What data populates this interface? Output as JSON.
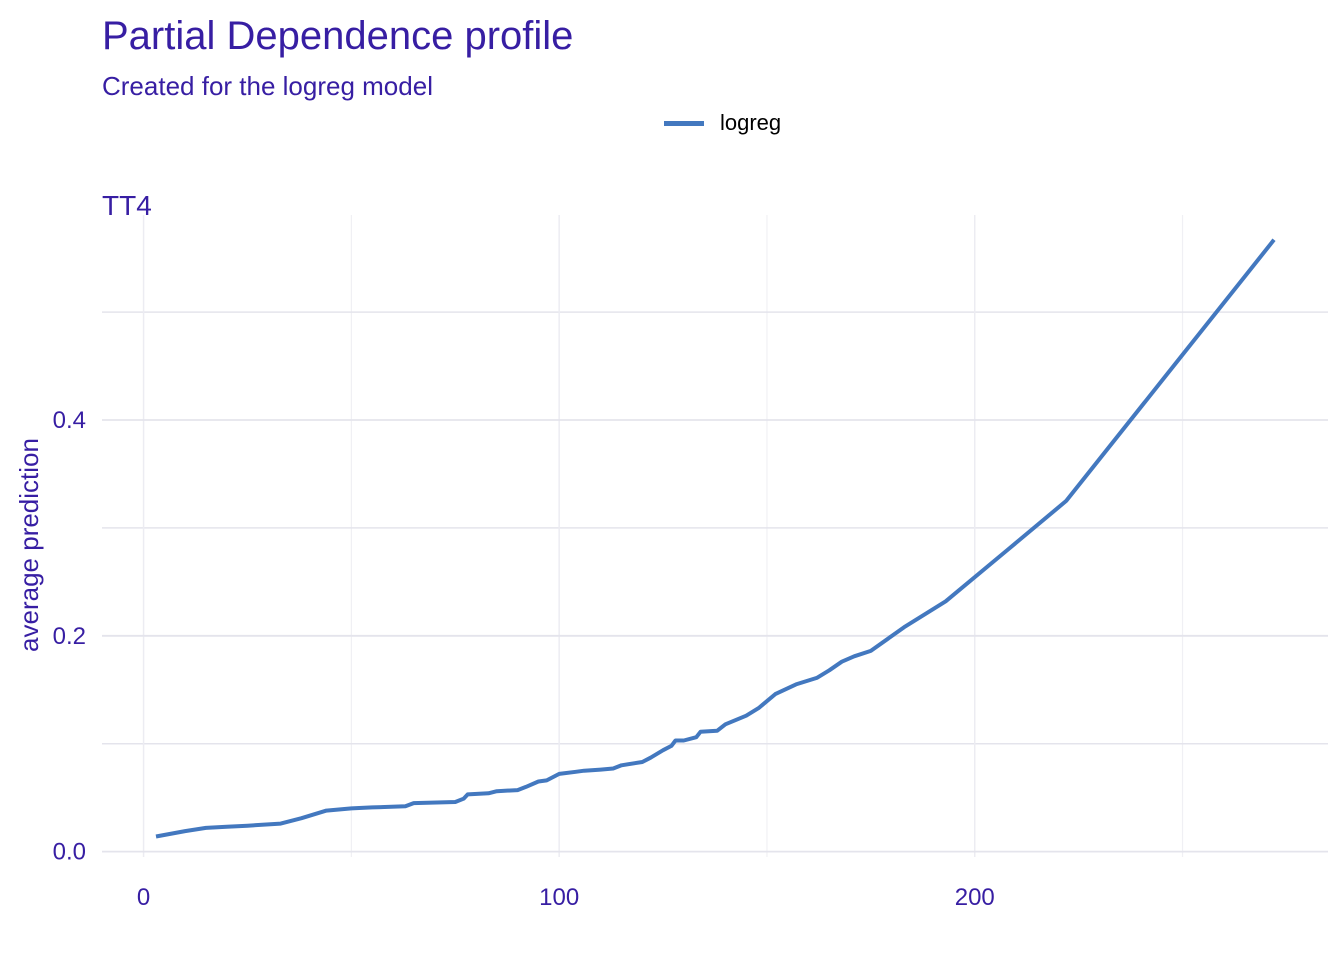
{
  "chart_data": {
    "type": "line",
    "title": "Partial Dependence profile",
    "subtitle": "Created for the logreg model",
    "facet": "TT4",
    "xlabel": "",
    "ylabel": "average prediction",
    "xlim": [
      -10,
      285
    ],
    "ylim": [
      -0.005,
      0.59
    ],
    "x_ticks": [
      0,
      100,
      200
    ],
    "x_tick_labels": [
      "0",
      "100",
      "200"
    ],
    "y_ticks": [
      0.0,
      0.2,
      0.4
    ],
    "y_tick_labels": [
      "0.0",
      "0.2",
      "0.4"
    ],
    "x_minor_grid": [
      50,
      150,
      250
    ],
    "y_minor_grid": [
      0.1,
      0.3,
      0.5
    ],
    "grid": true,
    "legend": {
      "position": "top-center",
      "entries": [
        "logreg"
      ]
    },
    "series": [
      {
        "name": "logreg",
        "color": "#4378bf",
        "x": [
          3,
          10,
          15,
          20,
          25,
          33,
          38,
          44,
          50,
          55,
          63,
          65,
          75,
          77,
          78,
          83,
          85,
          90,
          92,
          95,
          97,
          100,
          104,
          106,
          110,
          113,
          115,
          120,
          122,
          125,
          127,
          128,
          130,
          133,
          134,
          138,
          140,
          145,
          148,
          152,
          157,
          162,
          165,
          168,
          171,
          175,
          183,
          193,
          208,
          222,
          272
        ],
        "y": [
          0.014,
          0.019,
          0.022,
          0.023,
          0.024,
          0.026,
          0.031,
          0.038,
          0.04,
          0.041,
          0.042,
          0.045,
          0.046,
          0.049,
          0.053,
          0.054,
          0.056,
          0.057,
          0.06,
          0.065,
          0.066,
          0.072,
          0.074,
          0.075,
          0.076,
          0.077,
          0.08,
          0.083,
          0.087,
          0.094,
          0.098,
          0.103,
          0.103,
          0.106,
          0.111,
          0.112,
          0.118,
          0.126,
          0.133,
          0.146,
          0.155,
          0.161,
          0.168,
          0.176,
          0.181,
          0.186,
          0.208,
          0.232,
          0.28,
          0.325,
          0.567
        ]
      }
    ]
  }
}
